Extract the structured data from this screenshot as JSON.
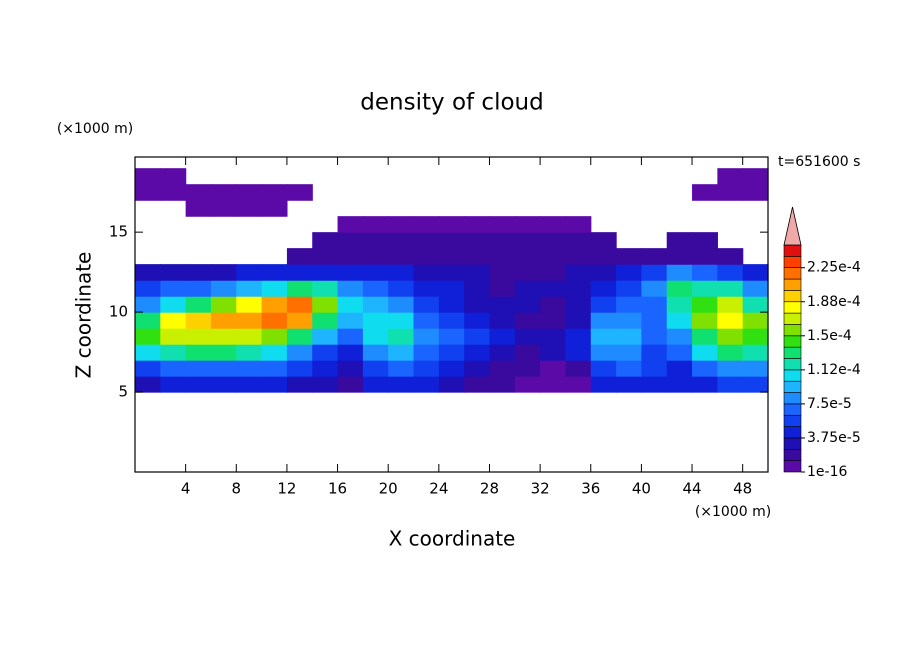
{
  "chart_data": {
    "type": "contour",
    "title": "density of cloud",
    "x_label": "X coordinate",
    "y_label": "Z coordinate",
    "x_unit": "(×1000 m)",
    "y_unit": "(×1000 m)",
    "time_label": "t=651600 s",
    "xlim": [
      0,
      50
    ],
    "ylim": [
      0,
      19.7
    ],
    "xticks": [
      4,
      8,
      12,
      16,
      20,
      24,
      28,
      32,
      36,
      40,
      44,
      48
    ],
    "yticks": [
      5,
      10,
      15
    ],
    "x": [
      1,
      3,
      5,
      7,
      9,
      11,
      13,
      15,
      17,
      19,
      21,
      23,
      25,
      27,
      29,
      31,
      33,
      35,
      37,
      39,
      41,
      43,
      45,
      47,
      49
    ],
    "y": [
      5.5,
      6.5,
      7.5,
      8.5,
      9.5,
      10.5,
      11.5,
      12.5,
      13.5,
      14.5,
      15.5,
      16.5,
      17.5,
      18.5
    ],
    "z": [
      [
        3e-05,
        4.5e-05,
        4.5e-05,
        4.5e-05,
        4.5e-05,
        4.5e-05,
        3e-05,
        3e-05,
        2e-05,
        4.5e-05,
        4.5e-05,
        4.5e-05,
        3e-05,
        2e-05,
        2e-05,
        5e-06,
        5e-06,
        5e-06,
        4.5e-05,
        4.5e-05,
        4.5e-05,
        4.5e-05,
        4.5e-05,
        6e-05,
        6e-05
      ],
      [
        6e-05,
        7e-05,
        7e-05,
        7e-05,
        7e-05,
        7e-05,
        6e-05,
        4.5e-05,
        3e-05,
        6e-05,
        7e-05,
        6e-05,
        4.5e-05,
        3e-05,
        2e-05,
        2e-05,
        5e-06,
        2e-05,
        6e-05,
        7e-05,
        6e-05,
        4.5e-05,
        7e-05,
        8e-05,
        8e-05
      ],
      [
        0.000105,
        0.00012,
        0.00013,
        0.00013,
        0.00012,
        0.000105,
        8e-05,
        6e-05,
        4.5e-05,
        8e-05,
        9.5e-05,
        7e-05,
        6e-05,
        4.5e-05,
        3e-05,
        2e-05,
        3e-05,
        4.5e-05,
        8e-05,
        8e-05,
        6e-05,
        7e-05,
        0.000105,
        0.00013,
        0.00012
      ],
      [
        0.000145,
        0.00017,
        0.00017,
        0.00017,
        0.00017,
        0.000155,
        0.00013,
        9.5e-05,
        7e-05,
        0.000105,
        0.00012,
        8e-05,
        7e-05,
        6e-05,
        4.5e-05,
        3e-05,
        3e-05,
        4.5e-05,
        9.5e-05,
        9.5e-05,
        7e-05,
        8e-05,
        0.00013,
        0.000155,
        0.000145
      ],
      [
        0.00013,
        0.00018,
        0.000195,
        0.000205,
        0.000205,
        0.00022,
        0.000205,
        0.00013,
        9.5e-05,
        0.000105,
        0.000105,
        7e-05,
        6e-05,
        4.5e-05,
        3e-05,
        2e-05,
        2e-05,
        3e-05,
        8e-05,
        8e-05,
        7e-05,
        0.000105,
        0.000155,
        0.00018,
        0.000155
      ],
      [
        8e-05,
        0.000105,
        0.00013,
        0.000155,
        0.00018,
        0.000205,
        0.00022,
        0.000155,
        0.000105,
        9.5e-05,
        8e-05,
        6e-05,
        4.5e-05,
        3e-05,
        3e-05,
        3e-05,
        2e-05,
        3e-05,
        6e-05,
        7e-05,
        7e-05,
        0.00012,
        0.000145,
        0.00017,
        0.00012
      ],
      [
        6e-05,
        7e-05,
        7e-05,
        8e-05,
        9.5e-05,
        0.000105,
        0.00013,
        0.00012,
        8e-05,
        7e-05,
        6e-05,
        4.5e-05,
        4.5e-05,
        3e-05,
        2e-05,
        3e-05,
        3e-05,
        3e-05,
        4.5e-05,
        6e-05,
        8e-05,
        0.00013,
        0.00012,
        0.00012,
        8e-05
      ],
      [
        3e-05,
        3e-05,
        3e-05,
        3e-05,
        4.5e-05,
        4.5e-05,
        4.5e-05,
        4.5e-05,
        4.5e-05,
        4.5e-05,
        4.5e-05,
        3e-05,
        3e-05,
        3e-05,
        2e-05,
        2e-05,
        2e-05,
        3e-05,
        3e-05,
        4.5e-05,
        6e-05,
        8e-05,
        7e-05,
        6e-05,
        4.5e-05
      ],
      [
        null,
        null,
        null,
        null,
        null,
        null,
        2e-05,
        2e-05,
        2e-05,
        2e-05,
        2e-05,
        2e-05,
        2e-05,
        2e-05,
        2e-05,
        2e-05,
        2e-05,
        2e-05,
        2e-05,
        2e-05,
        2e-05,
        2e-05,
        2e-05,
        2e-05,
        null
      ],
      [
        null,
        null,
        null,
        null,
        null,
        null,
        null,
        2e-05,
        2e-05,
        2e-05,
        2e-05,
        2e-05,
        2e-05,
        2e-05,
        2e-05,
        2e-05,
        2e-05,
        2e-05,
        2e-05,
        null,
        null,
        2e-05,
        2e-05,
        null,
        null
      ],
      [
        null,
        null,
        null,
        null,
        null,
        null,
        null,
        null,
        5e-06,
        5e-06,
        5e-06,
        5e-06,
        5e-06,
        5e-06,
        5e-06,
        5e-06,
        5e-06,
        5e-06,
        null,
        null,
        null,
        null,
        null,
        null,
        null
      ],
      [
        null,
        null,
        5e-06,
        5e-06,
        5e-06,
        5e-06,
        null,
        null,
        null,
        null,
        null,
        null,
        null,
        null,
        null,
        null,
        null,
        null,
        null,
        null,
        null,
        null,
        null,
        null,
        null
      ],
      [
        5e-06,
        5e-06,
        5e-06,
        5e-06,
        5e-06,
        5e-06,
        5e-06,
        null,
        null,
        null,
        null,
        null,
        null,
        null,
        null,
        null,
        null,
        null,
        null,
        null,
        null,
        null,
        5e-06,
        5e-06,
        5e-06
      ],
      [
        5e-06,
        5e-06,
        null,
        null,
        null,
        null,
        null,
        null,
        null,
        null,
        null,
        null,
        null,
        null,
        null,
        null,
        null,
        null,
        null,
        null,
        null,
        null,
        null,
        5e-06,
        5e-06
      ]
    ],
    "levels": [
      1e-16,
      1.25e-05,
      2.5e-05,
      3.75e-05,
      5e-05,
      6.25e-05,
      7.5e-05,
      8.75e-05,
      0.0001,
      0.0001125,
      0.000125,
      0.0001375,
      0.00015,
      0.0001625,
      0.000175,
      0.0001875,
      0.0002,
      0.0002125,
      0.000225,
      0.0002375,
      0.00025
    ],
    "colors": [
      "#5b0aa8",
      "#3a0a9e",
      "#1e10b4",
      "#1020d8",
      "#1040f0",
      "#1a64ff",
      "#1e8cff",
      "#1eb4ff",
      "#10dcf0",
      "#10e0b0",
      "#10e070",
      "#30e010",
      "#80e000",
      "#c8f000",
      "#ffff00",
      "#ffd000",
      "#ffa000",
      "#ff7000",
      "#ff4000",
      "#e01010"
    ],
    "extend_color": "#f0a8a8",
    "cbar_ticks": [
      {
        "value": 1e-16,
        "label": "1e-16"
      },
      {
        "value": 3.75e-05,
        "label": "3.75e-5"
      },
      {
        "value": 7.5e-05,
        "label": "7.5e-5"
      },
      {
        "value": 0.0001125,
        "label": "1.12e-4"
      },
      {
        "value": 0.00015,
        "label": "1.5e-4"
      },
      {
        "value": 0.0001875,
        "label": "1.88e-4"
      },
      {
        "value": 0.000225,
        "label": "2.25e-4"
      }
    ]
  }
}
